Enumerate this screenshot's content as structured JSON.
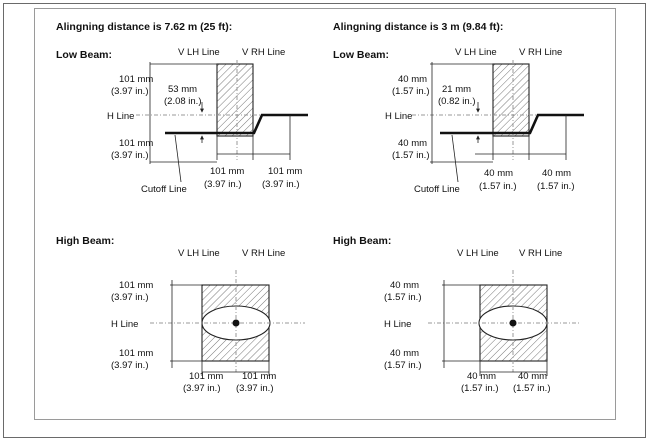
{
  "left": {
    "heading": "Alingning distance is 7.62 m (25 ft):",
    "low": {
      "title": "Low Beam:",
      "vlh": "V LH Line",
      "vrh": "V RH Line",
      "top_mm": "101 mm",
      "top_in": "(3.97 in.)",
      "offset_mm": "53 mm",
      "offset_in": "(2.08 in.)",
      "hline": "H Line",
      "bot_mm": "101 mm",
      "bot_in": "(3.97 in.)",
      "cutoff": "Cutoff Line",
      "w1_mm": "101 mm",
      "w1_in": "(3.97 in.)",
      "w2_mm": "101 mm",
      "w2_in": "(3.97 in.)"
    },
    "high": {
      "title": "High Beam:",
      "vlh": "V LH Line",
      "vrh": "V RH Line",
      "top_mm": "101 mm",
      "top_in": "(3.97 in.)",
      "hline": "H Line",
      "bot_mm": "101 mm",
      "bot_in": "(3.97 in.)",
      "w1_mm": "101 mm",
      "w1_in": "(3.97 in.)",
      "w2_mm": "101 mm",
      "w2_in": "(3.97 in.)"
    }
  },
  "right": {
    "heading": "Alingning distance is 3 m (9.84 ft):",
    "low": {
      "title": "Low Beam:",
      "vlh": "V LH Line",
      "vrh": "V RH Line",
      "top_mm": "40 mm",
      "top_in": "(1.57 in.)",
      "offset_mm": "21 mm",
      "offset_in": "(0.82 in.)",
      "hline": "H Line",
      "bot_mm": "40 mm",
      "bot_in": "(1.57 in.)",
      "cutoff": "Cutoff Line",
      "w1_mm": "40 mm",
      "w1_in": "(1.57 in.)",
      "w2_mm": "40 mm",
      "w2_in": "(1.57 in.)"
    },
    "high": {
      "title": "High Beam:",
      "vlh": "V LH Line",
      "vrh": "V RH Line",
      "top_mm": "40 mm",
      "top_in": "(1.57 in.)",
      "hline": "H Line",
      "bot_mm": "40 mm",
      "bot_in": "(1.57 in.)",
      "w1_mm": "40 mm",
      "w1_in": "(1.57 in.)",
      "w2_mm": "40 mm",
      "w2_in": "(1.57 in.)"
    }
  }
}
